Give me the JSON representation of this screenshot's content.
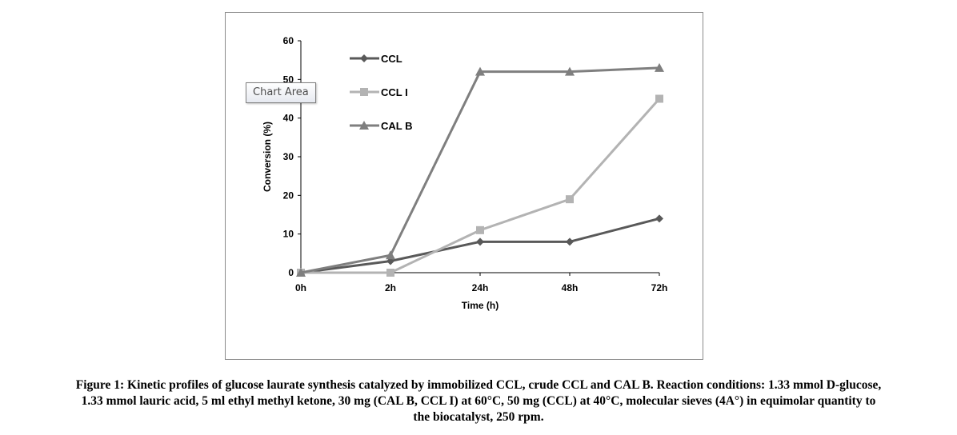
{
  "chart_data": {
    "type": "line",
    "categories": [
      "0h",
      "2h",
      "24h",
      "48h",
      "72h"
    ],
    "series": [
      {
        "name": "CCL",
        "values": [
          0,
          3,
          8,
          8,
          14
        ],
        "color": "#595959",
        "marker": "diamond"
      },
      {
        "name": "CCL I",
        "values": [
          0,
          0,
          11,
          19,
          45
        ],
        "color": "#b3b3b3",
        "marker": "square"
      },
      {
        "name": "CAL B",
        "values": [
          0,
          4.5,
          52,
          52,
          53
        ],
        "color": "#7f7f7f",
        "marker": "triangle"
      }
    ],
    "xlabel": "Time (h)",
    "ylabel": "Conversion (%)",
    "ylim": [
      0,
      60
    ],
    "yticks": [
      0,
      10,
      20,
      30,
      40,
      50,
      60
    ],
    "grid": false,
    "legend_position": "top-left inside plot"
  },
  "tooltip": {
    "label": "Chart Area"
  },
  "caption": {
    "lines": [
      "Figure 1: Kinetic profiles of glucose laurate synthesis catalyzed by immobilized CCL, crude CCL and CAL B. Reaction conditions: 1.33 mmol D-glucose,",
      "1.33 mmol lauric acid, 5 ml ethyl methyl ketone, 30 mg (CAL B, CCL I) at 60°C, 50 mg (CCL) at 40°C, molecular sieves (4A°) in equimolar quantity to",
      "the biocatalyst, 250 rpm."
    ]
  }
}
